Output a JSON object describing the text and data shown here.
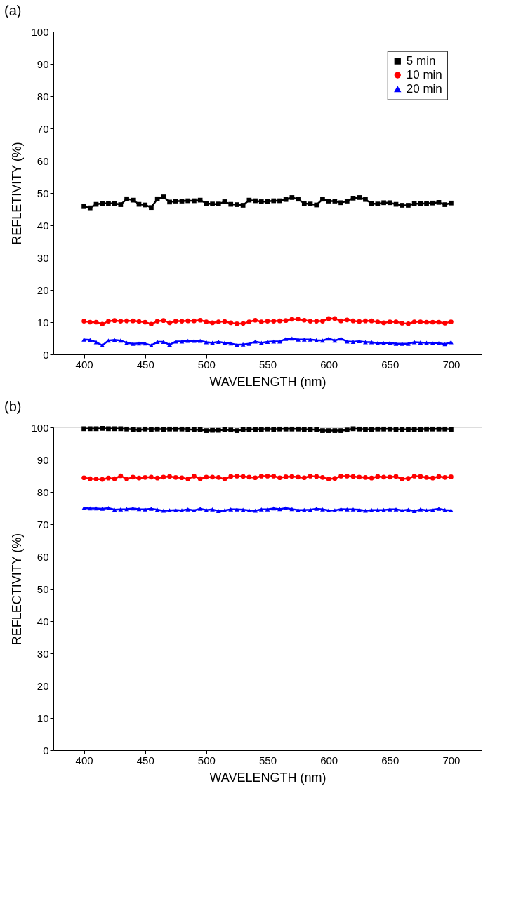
{
  "chart_data": [
    {
      "type": "line",
      "title": "(a)",
      "xlabel": "WAVELENGTH (nm)",
      "ylabel": "REFLETIVITY (%)",
      "x": [
        400,
        405,
        410,
        415,
        420,
        425,
        430,
        435,
        440,
        445,
        450,
        455,
        460,
        465,
        470,
        475,
        480,
        485,
        490,
        495,
        500,
        505,
        510,
        515,
        520,
        525,
        530,
        535,
        540,
        545,
        550,
        555,
        560,
        565,
        570,
        575,
        580,
        585,
        590,
        595,
        600,
        605,
        610,
        615,
        620,
        625,
        630,
        635,
        640,
        645,
        650,
        655,
        660,
        665,
        670,
        675,
        680,
        685,
        690,
        695,
        700
      ],
      "series": [
        {
          "name": "5 min",
          "color": "#000000",
          "marker": "square",
          "values": [
            45.8,
            45.4,
            46.5,
            46.8,
            46.8,
            46.8,
            46.4,
            48.2,
            47.8,
            46.5,
            46.3,
            45.5,
            48.2,
            48.8,
            47.2,
            47.5,
            47.5,
            47.6,
            47.6,
            47.8,
            46.8,
            46.6,
            46.6,
            47.3,
            46.5,
            46.4,
            46.2,
            47.8,
            47.6,
            47.3,
            47.4,
            47.6,
            47.6,
            48.0,
            48.6,
            48.1,
            46.8,
            46.6,
            46.3,
            48.1,
            47.5,
            47.5,
            47.0,
            47.5,
            48.4,
            48.6,
            48.0,
            46.8,
            46.6,
            47.0,
            47.0,
            46.5,
            46.2,
            46.2,
            46.7,
            46.7,
            46.8,
            46.9,
            47.1,
            46.4,
            46.9
          ]
        },
        {
          "name": "10 min",
          "color": "#ff0000",
          "marker": "circle",
          "values": [
            10.3,
            10.0,
            10.0,
            9.4,
            10.3,
            10.5,
            10.3,
            10.4,
            10.4,
            10.2,
            10.0,
            9.4,
            10.3,
            10.5,
            9.8,
            10.3,
            10.3,
            10.4,
            10.4,
            10.6,
            10.1,
            9.8,
            10.1,
            10.2,
            9.8,
            9.5,
            9.6,
            10.1,
            10.6,
            10.1,
            10.3,
            10.3,
            10.4,
            10.5,
            10.9,
            10.9,
            10.6,
            10.3,
            10.3,
            10.3,
            11.1,
            11.1,
            10.4,
            10.7,
            10.4,
            10.2,
            10.4,
            10.4,
            10.1,
            9.8,
            10.1,
            10.1,
            9.7,
            9.5,
            10.1,
            10.1,
            10.0,
            10.0,
            10.0,
            9.7,
            10.1
          ]
        },
        {
          "name": "20 min",
          "color": "#0000ff",
          "marker": "triangle",
          "values": [
            4.6,
            4.5,
            3.8,
            2.8,
            4.3,
            4.5,
            4.3,
            3.6,
            3.3,
            3.4,
            3.4,
            2.8,
            3.9,
            3.9,
            3.0,
            4.0,
            4.0,
            4.2,
            4.2,
            4.2,
            3.8,
            3.6,
            3.9,
            3.6,
            3.4,
            3.0,
            3.1,
            3.3,
            4.0,
            3.6,
            3.9,
            4.0,
            4.0,
            4.8,
            4.9,
            4.6,
            4.6,
            4.6,
            4.4,
            4.3,
            4.9,
            4.3,
            4.9,
            4.0,
            3.9,
            4.1,
            3.8,
            3.8,
            3.5,
            3.5,
            3.6,
            3.3,
            3.3,
            3.3,
            3.8,
            3.7,
            3.6,
            3.6,
            3.5,
            3.2,
            3.8
          ]
        }
      ],
      "xlim": [
        375,
        725
      ],
      "xticks": [
        400,
        450,
        500,
        550,
        600,
        650,
        700
      ],
      "ylim": [
        0,
        100
      ],
      "yticks": [
        0,
        10,
        20,
        30,
        40,
        50,
        60,
        70,
        80,
        90,
        100
      ],
      "grid": false,
      "legend": "top right",
      "line_style": "solid"
    },
    {
      "type": "line",
      "title": "(b)",
      "xlabel": "WAVELENGTH (nm)",
      "ylabel": "REFLECTIVITY (%)",
      "x": [
        400,
        405,
        410,
        415,
        420,
        425,
        430,
        435,
        440,
        445,
        450,
        455,
        460,
        465,
        470,
        475,
        480,
        485,
        490,
        495,
        500,
        505,
        510,
        515,
        520,
        525,
        530,
        535,
        540,
        545,
        550,
        555,
        560,
        565,
        570,
        575,
        580,
        585,
        590,
        595,
        600,
        605,
        610,
        615,
        620,
        625,
        630,
        635,
        640,
        645,
        650,
        655,
        660,
        665,
        670,
        675,
        680,
        685,
        690,
        695,
        700
      ],
      "series": [
        {
          "name": "5 min",
          "color": "#000000",
          "marker": "square",
          "values": [
            99.6,
            99.6,
            99.6,
            99.7,
            99.6,
            99.6,
            99.6,
            99.5,
            99.4,
            99.2,
            99.5,
            99.4,
            99.5,
            99.4,
            99.5,
            99.5,
            99.5,
            99.4,
            99.3,
            99.3,
            99.0,
            99.1,
            99.1,
            99.3,
            99.2,
            99.0,
            99.3,
            99.4,
            99.4,
            99.4,
            99.5,
            99.4,
            99.5,
            99.5,
            99.5,
            99.5,
            99.4,
            99.4,
            99.3,
            99.0,
            99.0,
            99.0,
            99.0,
            99.2,
            99.6,
            99.5,
            99.4,
            99.4,
            99.5,
            99.5,
            99.5,
            99.4,
            99.4,
            99.4,
            99.4,
            99.4,
            99.5,
            99.5,
            99.5,
            99.5,
            99.4
          ]
        },
        {
          "name": "10 min",
          "color": "#ff0000",
          "marker": "circle",
          "values": [
            84.4,
            84.1,
            84.0,
            83.9,
            84.3,
            84.1,
            85.0,
            84.0,
            84.6,
            84.3,
            84.5,
            84.6,
            84.3,
            84.6,
            84.8,
            84.5,
            84.4,
            84.0,
            84.9,
            84.1,
            84.6,
            84.6,
            84.5,
            84.0,
            84.8,
            84.9,
            84.8,
            84.6,
            84.4,
            84.9,
            84.9,
            84.9,
            84.4,
            84.7,
            84.8,
            84.6,
            84.4,
            84.9,
            84.8,
            84.5,
            84.0,
            84.2,
            84.9,
            84.9,
            84.8,
            84.6,
            84.5,
            84.3,
            84.8,
            84.6,
            84.6,
            84.8,
            84.0,
            84.2,
            84.9,
            84.8,
            84.5,
            84.3,
            84.8,
            84.5,
            84.7
          ]
        },
        {
          "name": "20 min",
          "color": "#0000ff",
          "marker": "triangle",
          "values": [
            75.0,
            74.9,
            74.9,
            74.8,
            75.0,
            74.5,
            74.6,
            74.7,
            74.9,
            74.7,
            74.6,
            74.8,
            74.5,
            74.2,
            74.3,
            74.4,
            74.3,
            74.6,
            74.3,
            74.8,
            74.4,
            74.6,
            74.1,
            74.3,
            74.6,
            74.6,
            74.5,
            74.3,
            74.2,
            74.6,
            74.6,
            74.9,
            74.7,
            75.0,
            74.7,
            74.4,
            74.4,
            74.5,
            74.8,
            74.6,
            74.3,
            74.3,
            74.7,
            74.6,
            74.6,
            74.5,
            74.2,
            74.4,
            74.4,
            74.4,
            74.6,
            74.6,
            74.3,
            74.5,
            74.1,
            74.6,
            74.3,
            74.5,
            74.8,
            74.4,
            74.3
          ]
        }
      ],
      "xlim": [
        375,
        725
      ],
      "xticks": [
        400,
        450,
        500,
        550,
        600,
        650,
        700
      ],
      "ylim": [
        0,
        100
      ],
      "yticks": [
        0,
        10,
        20,
        30,
        40,
        50,
        60,
        70,
        80,
        90,
        100
      ],
      "grid": false,
      "legend": "right",
      "line_style": "solid"
    }
  ]
}
